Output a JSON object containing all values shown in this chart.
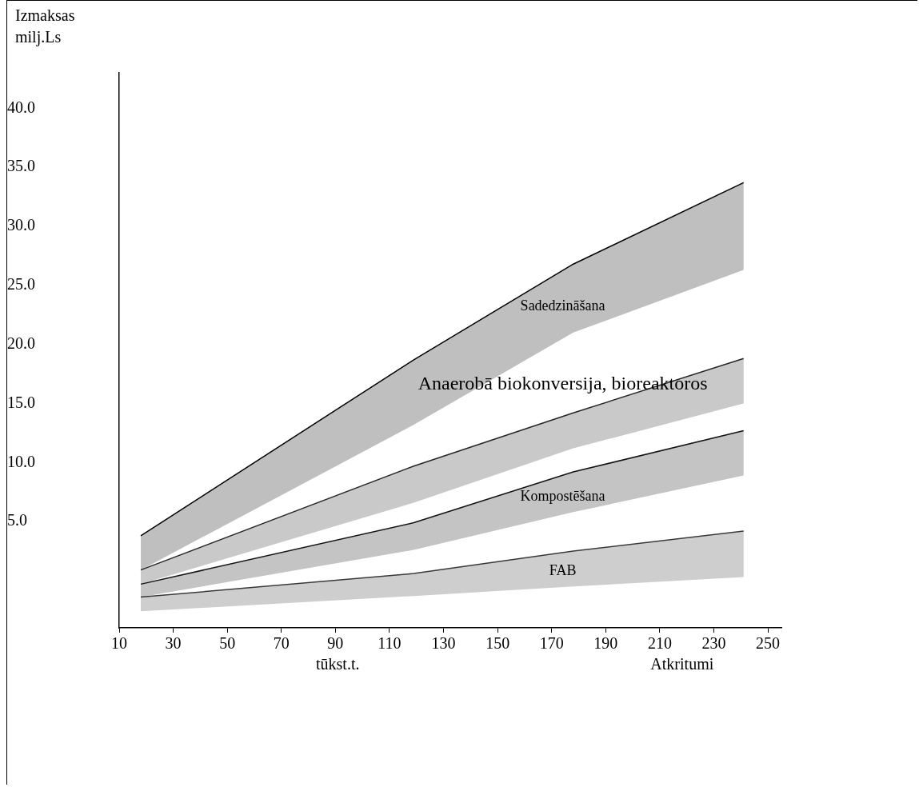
{
  "chart_data": {
    "type": "line",
    "ylabel": "Izmaksas\nmilj.Ls",
    "xlabel": "tūkst.t.",
    "annotations": [
      "Atkritumi"
    ],
    "xlim": [
      10,
      255
    ],
    "xticks": [
      10,
      30,
      50,
      70,
      90,
      110,
      130,
      150,
      170,
      190,
      210,
      230,
      250
    ],
    "ylim": [
      -4,
      43
    ],
    "yticks": [
      {
        "value": 5,
        "label": "5.0"
      },
      {
        "value": 10,
        "label": "10.0"
      },
      {
        "value": 15,
        "label": "15.0"
      },
      {
        "value": 20,
        "label": "20.0"
      },
      {
        "value": 25,
        "label": "25.0"
      },
      {
        "value": 30,
        "label": "30.0"
      },
      {
        "value": 35,
        "label": "35.0"
      },
      {
        "value": 40,
        "label": "40.0"
      }
    ],
    "grid": false,
    "legend": false,
    "x": [
      18,
      119,
      178,
      241
    ],
    "series": [
      {
        "name": "Sadedzināšana",
        "color": "#000000",
        "values": [
          3.8,
          18.7,
          26.8,
          33.7
        ],
        "upper": [
          3.8,
          18.7,
          26.8,
          33.7
        ],
        "lower": [
          0.9,
          13.2,
          21.0,
          26.3
        ]
      },
      {
        "name": "Anaerobā biokonversija, bioreaktoros",
        "color": "#262626",
        "values": [
          0.9,
          9.7,
          14.2,
          18.8
        ],
        "upper": [
          0.9,
          9.7,
          14.2,
          18.8
        ],
        "lower": [
          -0.3,
          6.6,
          11.2,
          15.0
        ]
      },
      {
        "name": "Kompostēšana",
        "color": "#131313",
        "values": [
          -0.3,
          4.9,
          9.2,
          12.7
        ],
        "upper": [
          -0.3,
          4.9,
          9.2,
          12.7
        ],
        "lower": [
          -1.4,
          2.6,
          5.8,
          8.9
        ]
      },
      {
        "name": "FAB",
        "color": "#3a3a3a",
        "values": [
          -1.4,
          0.6,
          2.5,
          4.2
        ],
        "upper": [
          -1.4,
          0.6,
          2.5,
          4.2
        ],
        "lower": [
          -2.6,
          -1.3,
          -0.5,
          0.3
        ]
      }
    ]
  }
}
